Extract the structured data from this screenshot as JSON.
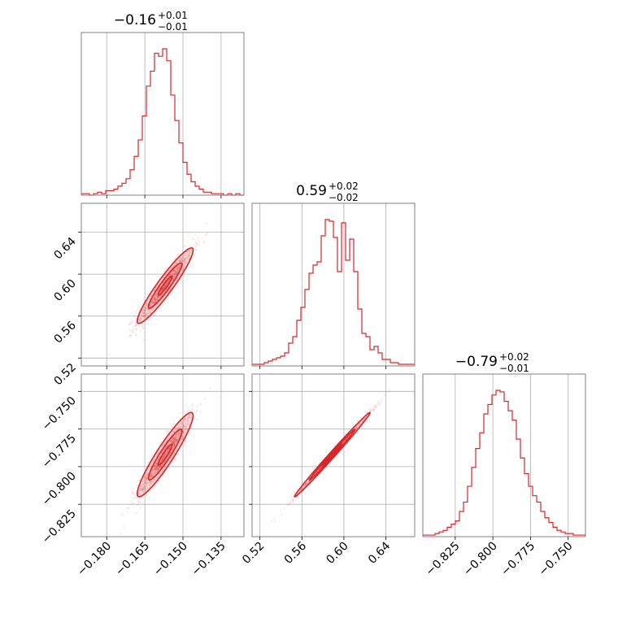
{
  "chart_data": {
    "type": "corner",
    "color": "#d62728",
    "parameters": [
      {
        "title": {
          "value": "−0.16",
          "plus": "+0.01",
          "minus": "−0.01"
        },
        "range": [
          -0.19,
          -0.126
        ],
        "ticks": [
          -0.18,
          -0.165,
          -0.15,
          -0.135
        ],
        "tick_labels": [
          "−0.180",
          "−0.165",
          "−0.150",
          "−0.135"
        ]
      },
      {
        "title": {
          "value": "0.59",
          "plus": "+0.02",
          "minus": "−0.02"
        },
        "range": [
          0.5125,
          0.6675
        ],
        "ticks": [
          0.52,
          0.56,
          0.6,
          0.64
        ],
        "tick_labels": [
          "0.52",
          "0.56",
          "0.60",
          "0.64"
        ]
      },
      {
        "title": {
          "value": "−0.79",
          "plus": "+0.02",
          "minus": "−0.01"
        },
        "range": [
          -0.8465,
          -0.7385
        ],
        "ticks": [
          -0.825,
          -0.8,
          -0.775,
          -0.75
        ],
        "tick_labels": [
          "−0.825",
          "−0.800",
          "−0.775",
          "−0.750"
        ]
      }
    ],
    "histograms": [
      {
        "parameter": 0,
        "bin_edges_range": [
          -0.19,
          -0.126
        ],
        "counts": [
          1,
          1,
          0,
          1,
          2,
          1,
          3,
          3,
          4,
          6,
          8,
          11,
          17,
          26,
          37,
          53,
          73,
          83,
          95,
          93,
          98,
          90,
          67,
          50,
          35,
          22,
          14,
          9,
          6,
          4,
          2,
          2,
          1,
          1,
          1,
          0,
          1,
          0,
          1,
          0
        ]
      },
      {
        "parameter": 1,
        "bin_edges_range": [
          0.5125,
          0.6675
        ],
        "counts": [
          1,
          1,
          1,
          2,
          3,
          4,
          5,
          6,
          8,
          14,
          18,
          28,
          36,
          47,
          57,
          62,
          64,
          80,
          90,
          89,
          79,
          58,
          88,
          65,
          78,
          58,
          35,
          20,
          18,
          10,
          12,
          8,
          4,
          4,
          2,
          2,
          1,
          1,
          1,
          1
        ]
      },
      {
        "parameter": 2,
        "bin_edges_range": [
          -0.8465,
          -0.7385
        ],
        "counts": [
          1,
          1,
          1,
          2,
          3,
          4,
          6,
          8,
          10,
          16,
          22,
          32,
          44,
          56,
          66,
          78,
          84,
          90,
          93,
          92,
          86,
          80,
          74,
          62,
          50,
          40,
          32,
          26,
          22,
          16,
          12,
          9,
          6,
          4,
          3,
          2,
          2,
          1,
          1,
          1
        ]
      }
    ],
    "pairs": [
      {
        "x": 0,
        "y": 1,
        "mean": [
          -0.157,
          0.589
        ],
        "sd": [
          0.0055,
          0.018
        ],
        "corr": 0.94,
        "n_points": 900
      },
      {
        "x": 0,
        "y": 2,
        "mean": [
          -0.157,
          -0.792
        ],
        "sd": [
          0.0055,
          0.014
        ],
        "corr": 0.93,
        "n_points": 900
      },
      {
        "x": 1,
        "y": 2,
        "mean": [
          0.589,
          -0.792
        ],
        "sd": [
          0.018,
          0.014
        ],
        "corr": 0.995,
        "n_points": 900
      }
    ],
    "grid": true
  }
}
